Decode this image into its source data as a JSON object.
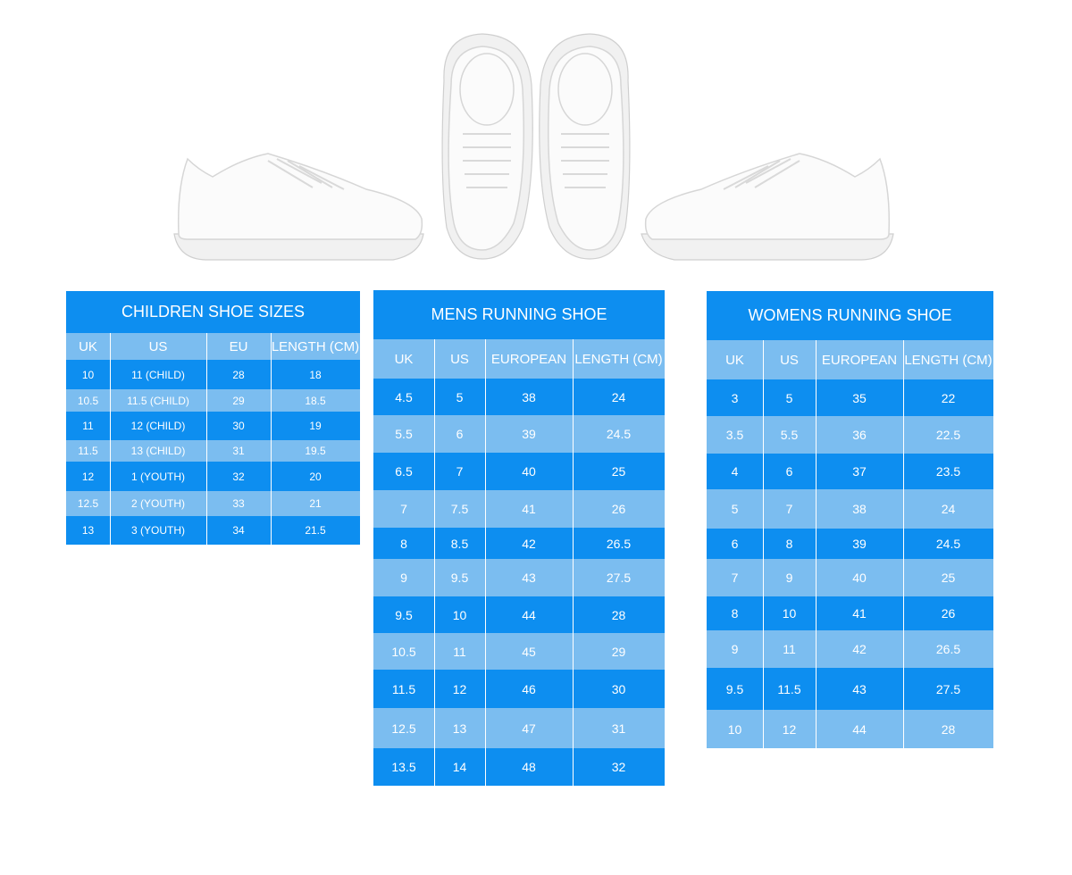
{
  "tables": [
    {
      "title": "CHILDREN SHOE SIZES",
      "headers": [
        "UK",
        "US",
        "EU",
        "LENGTH (CM)"
      ],
      "rows": [
        [
          "10",
          "11 (CHILD)",
          "28",
          "18"
        ],
        [
          "10.5",
          "11.5 (CHILD)",
          "29",
          "18.5"
        ],
        [
          "11",
          "12 (CHILD)",
          "30",
          "19"
        ],
        [
          "11.5",
          "13 (CHILD)",
          "31",
          "19.5"
        ],
        [
          "12",
          "1 (YOUTH)",
          "32",
          "20"
        ],
        [
          "12.5",
          "2 (YOUTH)",
          "33",
          "21"
        ],
        [
          "13",
          "3 (YOUTH)",
          "34",
          "21.5"
        ]
      ]
    },
    {
      "title": "MENS RUNNING SHOE",
      "headers": [
        "UK",
        "US",
        "EUROPEAN",
        "LENGTH (CM)"
      ],
      "rows": [
        [
          "4.5",
          "5",
          "38",
          "24"
        ],
        [
          "5.5",
          "6",
          "39",
          "24.5"
        ],
        [
          "6.5",
          "7",
          "40",
          "25"
        ],
        [
          "7",
          "7.5",
          "41",
          "26"
        ],
        [
          "8",
          "8.5",
          "42",
          "26.5"
        ],
        [
          "9",
          "9.5",
          "43",
          "27.5"
        ],
        [
          "9.5",
          "10",
          "44",
          "28"
        ],
        [
          "10.5",
          "11",
          "45",
          "29"
        ],
        [
          "11.5",
          "12",
          "46",
          "30"
        ],
        [
          "12.5",
          "13",
          "47",
          "31"
        ],
        [
          "13.5",
          "14",
          "48",
          "32"
        ]
      ]
    },
    {
      "title": "WOMENS RUNNING SHOE",
      "headers": [
        "UK",
        "US",
        "EUROPEAN",
        "LENGTH (CM)"
      ],
      "rows": [
        [
          "3",
          "5",
          "35",
          "22"
        ],
        [
          "3.5",
          "5.5",
          "36",
          "22.5"
        ],
        [
          "4",
          "6",
          "37",
          "23.5"
        ],
        [
          "5",
          "7",
          "38",
          "24"
        ],
        [
          "6",
          "8",
          "39",
          "24.5"
        ],
        [
          "7",
          "9",
          "40",
          "25"
        ],
        [
          "8",
          "10",
          "41",
          "26"
        ],
        [
          "9",
          "11",
          "42",
          "26.5"
        ],
        [
          "9.5",
          "11.5",
          "43",
          "27.5"
        ],
        [
          "10",
          "12",
          "44",
          "28"
        ]
      ]
    }
  ]
}
